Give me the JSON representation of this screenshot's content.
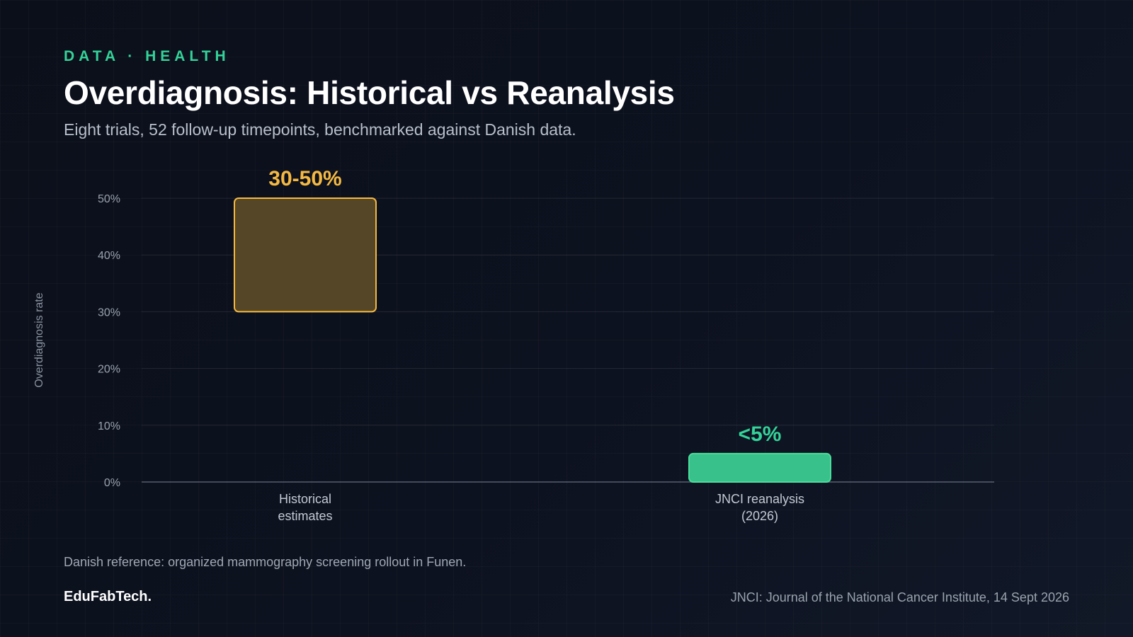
{
  "header": {
    "kicker": "DATA · HEALTH",
    "title": "Overdiagnosis: Historical vs Reanalysis",
    "subtitle": "Eight trials, 52 follow-up timepoints, benchmarked against Danish data."
  },
  "chart_data": {
    "type": "bar",
    "title": "Overdiagnosis: Historical vs Reanalysis",
    "subtitle": "Eight trials, 52 follow-up timepoints, benchmarked against Danish data.",
    "ylabel": "Overdiagnosis rate",
    "xlabel": "",
    "ylim": [
      0,
      50
    ],
    "yticks": [
      {
        "value": 0,
        "label": "0%"
      },
      {
        "value": 10,
        "label": "10%"
      },
      {
        "value": 20,
        "label": "20%"
      },
      {
        "value": 30,
        "label": "30%"
      },
      {
        "value": 40,
        "label": "40%"
      },
      {
        "value": 50,
        "label": "50%"
      }
    ],
    "grid": true,
    "bars": [
      {
        "category": [
          "Historical",
          "estimates"
        ],
        "low": 30,
        "high": 50,
        "label": "30-50%",
        "fill": "#544626",
        "stroke": "#f5b942",
        "label_color": "#f5b942"
      },
      {
        "category": [
          "JNCI reanalysis",
          "(2026)"
        ],
        "low": 0,
        "high": 5,
        "label": "<5%",
        "fill": "#38c18a",
        "stroke": "#4ade9c",
        "label_color": "#34d399"
      }
    ]
  },
  "footer": {
    "note": "Danish reference: organized mammography screening rollout in Funen.",
    "brand": "EduFabTech.",
    "source": "JNCI: Journal of the National Cancer Institute, 14 Sept 2026"
  },
  "colors": {
    "accent": "#34d399",
    "historical": "#f5b942",
    "reanalysis": "#38c18a"
  }
}
